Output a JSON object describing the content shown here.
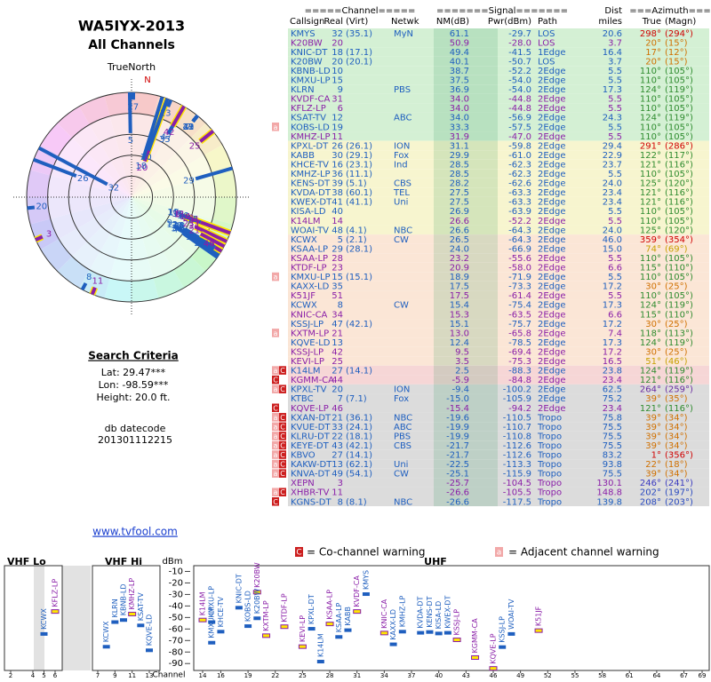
{
  "header": {
    "title": "WA5IYX-2013",
    "subtitle": "All Channels"
  },
  "radar": {
    "north_label": "TrueNorth",
    "n": "N"
  },
  "search": {
    "heading": "Search Criteria",
    "lat": "Lat: 29.47***",
    "lon": "Lon: -98.59***",
    "height": "Height: 20.0 ft.",
    "datecode_label": "db datecode",
    "datecode": "201301112215"
  },
  "link": "www.tvfool.com",
  "table": {
    "group_headers": {
      "channel": "=====Channel=====",
      "signal": "=======Signal=======",
      "dist": "Dist",
      "azimuth": "===Azimuth==="
    },
    "headers": {
      "callsign": "Callsign",
      "real": "Real",
      "virt": "(Virt)",
      "netwk": "Netwk",
      "nm": "NM(dB)",
      "pwr": "Pwr(dBm)",
      "path": "Path",
      "miles": "miles",
      "true": "True",
      "magn": "(Magn)"
    },
    "rows": [
      {
        "cs": "KMYS",
        "ch": 32,
        "virt": "(35.1)",
        "net": "MyN",
        "nm": 61.1,
        "pwr": -29.7,
        "path": "LOS",
        "dist": "20.6",
        "az": 298,
        "azl": "298°",
        "magn": "(294°)",
        "fg": "#1f5fbf",
        "bg": "#d4f0d4",
        "azc": "#d00000",
        "flags": []
      },
      {
        "cs": "K20BW",
        "ch": 20,
        "nm": 50.9,
        "pwr": -28.0,
        "pwrl": "-28.0",
        "path": "LOS",
        "dist": "3.7",
        "az": 20,
        "azl": "20°",
        "magn": "(15°)",
        "fg": "#8a1fa8",
        "bg": "#d4f0d4",
        "azc": "#d07000",
        "flags": []
      },
      {
        "cs": "KNIC-DT",
        "ch": 18,
        "virt": "(17.1)",
        "nm": 49.4,
        "pwr": -41.5,
        "path": "1Edge",
        "dist": "16.4",
        "az": 17,
        "azl": "17°",
        "magn": "(12°)",
        "fg": "#1f5fbf",
        "bg": "#d4f0d4",
        "azc": "#d07000",
        "flags": []
      },
      {
        "cs": "K20BW",
        "ch": 20,
        "virt": "(20.1)",
        "nm": 40.1,
        "pwr": -50.7,
        "path": "LOS",
        "dist": "3.7",
        "az": 20,
        "azl": "20°",
        "magn": "(15°)",
        "fg": "#1f5fbf",
        "bg": "#d4f0d4",
        "azc": "#d07000",
        "flags": []
      },
      {
        "cs": "KBNB-LD",
        "ch": 10,
        "nm": 38.7,
        "pwr": -52.2,
        "path": "2Edge",
        "dist": "5.5",
        "az": 110,
        "azl": "110°",
        "magn": "(105°)",
        "fg": "#1f5fbf",
        "bg": "#d4f0d4",
        "azc": "#2e8b2e",
        "flags": []
      },
      {
        "cs": "KMXU-LP",
        "ch": 15,
        "nm": 37.5,
        "pwr": -54.0,
        "pwrl": "-54.0",
        "path": "2Edge",
        "dist": "5.5",
        "az": 110,
        "azl": "110°",
        "magn": "(105°)",
        "fg": "#1f5fbf",
        "bg": "#d4f0d4",
        "azc": "#2e8b2e",
        "flags": []
      },
      {
        "cs": "KLRN",
        "ch": 9,
        "net": "PBS",
        "nm": 36.9,
        "pwr": -54.0,
        "pwrl": "-54.0",
        "path": "2Edge",
        "dist": "17.3",
        "az": 124,
        "azl": "124°",
        "magn": "(119°)",
        "fg": "#1f5fbf",
        "bg": "#d4f0d4",
        "azc": "#2e8b2e",
        "flags": []
      },
      {
        "cs": "KVDF-CA",
        "ch": 31,
        "nm": 34.0,
        "nml": "34.0",
        "pwr": -44.8,
        "path": "2Edge",
        "dist": "5.5",
        "az": 110,
        "azl": "110°",
        "magn": "(105°)",
        "fg": "#8a1fa8",
        "bg": "#d4f0d4",
        "azc": "#2e8b2e",
        "flags": []
      },
      {
        "cs": "KFLZ-LP",
        "ch": 6,
        "nm": 34.0,
        "nml": "34.0",
        "pwr": -44.8,
        "path": "2Edge",
        "dist": "5.5",
        "az": 110,
        "azl": "110°",
        "magn": "(105°)",
        "fg": "#8a1fa8",
        "bg": "#d4f0d4",
        "azc": "#2e8b2e",
        "flags": []
      },
      {
        "cs": "KSAT-TV",
        "ch": 12,
        "net": "ABC",
        "nm": 34.0,
        "nml": "34.0",
        "pwr": -56.9,
        "path": "2Edge",
        "dist": "24.3",
        "az": 124,
        "azl": "124°",
        "magn": "(119°)",
        "fg": "#1f5fbf",
        "bg": "#d4f0d4",
        "azc": "#2e8b2e",
        "flags": []
      },
      {
        "cs": "KOBS-LD",
        "ch": 19,
        "nm": 33.3,
        "pwr": -57.5,
        "path": "2Edge",
        "dist": "5.5",
        "az": 110,
        "azl": "110°",
        "magn": "(105°)",
        "fg": "#1f5fbf",
        "bg": "#d4f0d4",
        "azc": "#2e8b2e",
        "flags": [
          "a"
        ]
      },
      {
        "cs": "KMHZ-LP",
        "ch": 11,
        "nm": 31.9,
        "pwr": -47.0,
        "pwrl": "-47.0",
        "path": "2Edge",
        "dist": "5.5",
        "az": 110,
        "azl": "110°",
        "magn": "(105°)",
        "fg": "#8a1fa8",
        "bg": "#d4f0d4",
        "azc": "#2e8b2e",
        "flags": []
      },
      {
        "cs": "KPXL-DT",
        "ch": 26,
        "virt": "(26.1)",
        "net": "ION",
        "nm": 31.1,
        "pwr": -59.8,
        "path": "2Edge",
        "dist": "29.4",
        "az": 291,
        "azl": "291°",
        "magn": "(286°)",
        "fg": "#1f5fbf",
        "bg": "#f7f5cf",
        "azc": "#d00000",
        "flags": []
      },
      {
        "cs": "KABB",
        "ch": 30,
        "virt": "(29.1)",
        "net": "Fox",
        "nm": 29.9,
        "pwr": -61.0,
        "pwrl": "-61.0",
        "path": "2Edge",
        "dist": "22.9",
        "az": 122,
        "azl": "122°",
        "magn": "(117°)",
        "fg": "#1f5fbf",
        "bg": "#f7f5cf",
        "azc": "#2e8b2e",
        "flags": []
      },
      {
        "cs": "KHCE-TV",
        "ch": 16,
        "virt": "(23.1)",
        "net": "Ind",
        "nm": 28.5,
        "pwr": -62.3,
        "path": "2Edge",
        "dist": "23.7",
        "az": 121,
        "azl": "121°",
        "magn": "(116°)",
        "fg": "#1f5fbf",
        "bg": "#f7f5cf",
        "azc": "#2e8b2e",
        "flags": []
      },
      {
        "cs": "KMHZ-LP",
        "ch": 36,
        "virt": "(11.1)",
        "nm": 28.5,
        "pwr": -62.3,
        "path": "2Edge",
        "dist": "5.5",
        "az": 110,
        "azl": "110°",
        "magn": "(105°)",
        "fg": "#1f5fbf",
        "bg": "#f7f5cf",
        "azc": "#2e8b2e",
        "flags": []
      },
      {
        "cs": "KENS-DT",
        "ch": 39,
        "virt": "(5.1)",
        "net": "CBS",
        "nm": 28.2,
        "pwr": -62.6,
        "path": "2Edge",
        "dist": "24.0",
        "az": 125,
        "azl": "125°",
        "magn": "(120°)",
        "fg": "#1f5fbf",
        "bg": "#f7f5cf",
        "azc": "#2e8b2e",
        "flags": []
      },
      {
        "cs": "KVDA-DT",
        "ch": 38,
        "virt": "(60.1)",
        "net": "TEL",
        "nm": 27.5,
        "pwr": -63.3,
        "path": "2Edge",
        "dist": "23.4",
        "az": 121,
        "azl": "121°",
        "magn": "(116°)",
        "fg": "#1f5fbf",
        "bg": "#f7f5cf",
        "azc": "#2e8b2e",
        "flags": []
      },
      {
        "cs": "KWEX-DT",
        "ch": 41,
        "virt": "(41.1)",
        "net": "Uni",
        "nm": 27.5,
        "pwr": -63.3,
        "path": "2Edge",
        "dist": "23.4",
        "az": 121,
        "azl": "121°",
        "magn": "(116°)",
        "fg": "#1f5fbf",
        "bg": "#f7f5cf",
        "azc": "#2e8b2e",
        "flags": []
      },
      {
        "cs": "KISA-LD",
        "ch": 40,
        "nm": 26.9,
        "pwr": -63.9,
        "path": "2Edge",
        "dist": "5.5",
        "az": 110,
        "azl": "110°",
        "magn": "(105°)",
        "fg": "#1f5fbf",
        "bg": "#f7f5cf",
        "azc": "#2e8b2e",
        "flags": []
      },
      {
        "cs": "K14LM",
        "ch": 14,
        "nm": 26.6,
        "pwr": -52.2,
        "path": "2Edge",
        "dist": "5.5",
        "az": 110,
        "azl": "110°",
        "magn": "(105°)",
        "fg": "#8a1fa8",
        "bg": "#f7f5cf",
        "azc": "#2e8b2e",
        "flags": []
      },
      {
        "cs": "WOAI-TV",
        "ch": 48,
        "virt": "(4.1)",
        "net": "NBC",
        "nm": 26.6,
        "pwr": -64.3,
        "path": "2Edge",
        "dist": "24.0",
        "az": 125,
        "azl": "125°",
        "magn": "(120°)",
        "fg": "#1f5fbf",
        "bg": "#f7f5cf",
        "azc": "#2e8b2e",
        "flags": []
      },
      {
        "cs": "KCWX",
        "ch": 5,
        "virt": "(2.1)",
        "net": "CW",
        "nm": 26.5,
        "pwr": -64.3,
        "path": "2Edge",
        "dist": "46.0",
        "az": 359,
        "azl": "359°",
        "magn": "(354°)",
        "fg": "#1f5fbf",
        "bg": "#fbe6d6",
        "azc": "#d00000",
        "flags": []
      },
      {
        "cs": "KSAA-LP",
        "ch": 29,
        "virt": "(28.1)",
        "nm": 24.0,
        "nml": "24.0",
        "pwr": -66.9,
        "path": "2Edge",
        "dist": "15.0",
        "az": 74,
        "azl": "74°",
        "magn": "(69°)",
        "fg": "#1f5fbf",
        "bg": "#fbe6d6",
        "azc": "#c8a000",
        "flags": []
      },
      {
        "cs": "KSAA-LP",
        "ch": 28,
        "nm": 23.2,
        "pwr": -55.6,
        "path": "2Edge",
        "dist": "5.5",
        "az": 110,
        "azl": "110°",
        "magn": "(105°)",
        "fg": "#8a1fa8",
        "bg": "#fbe6d6",
        "azc": "#2e8b2e",
        "flags": []
      },
      {
        "cs": "KTDF-LP",
        "ch": 23,
        "nm": 20.9,
        "pwr": -58.0,
        "pwrl": "-58.0",
        "path": "2Edge",
        "dist": "6.6",
        "az": 115,
        "azl": "115°",
        "magn": "(110°)",
        "fg": "#8a1fa8",
        "bg": "#fbe6d6",
        "azc": "#2e8b2e",
        "flags": []
      },
      {
        "cs": "KMXU-LP",
        "ch": 15,
        "virt": "(15.1)",
        "nm": 18.9,
        "pwr": -71.9,
        "path": "2Edge",
        "dist": "5.5",
        "az": 110,
        "azl": "110°",
        "magn": "(105°)",
        "fg": "#1f5fbf",
        "bg": "#fbe6d6",
        "azc": "#2e8b2e",
        "flags": [
          "a"
        ]
      },
      {
        "cs": "KAXX-LD",
        "ch": 35,
        "nm": 17.5,
        "pwr": -73.3,
        "path": "2Edge",
        "dist": "17.2",
        "az": 30,
        "azl": "30°",
        "magn": "(25°)",
        "fg": "#1f5fbf",
        "bg": "#fbe6d6",
        "azc": "#d07000",
        "flags": []
      },
      {
        "cs": "K51JF",
        "ch": 51,
        "nm": 17.5,
        "pwr": -61.4,
        "path": "2Edge",
        "dist": "5.5",
        "az": 110,
        "azl": "110°",
        "magn": "(105°)",
        "fg": "#8a1fa8",
        "bg": "#fbe6d6",
        "azc": "#2e8b2e",
        "flags": []
      },
      {
        "cs": "KCWX",
        "ch": 8,
        "net": "CW",
        "nm": 15.4,
        "pwr": -75.4,
        "path": "2Edge",
        "dist": "17.3",
        "az": 124,
        "azl": "124°",
        "magn": "(119°)",
        "fg": "#1f5fbf",
        "bg": "#fbe6d6",
        "azc": "#2e8b2e",
        "flags": []
      },
      {
        "cs": "KNIC-CA",
        "ch": 34,
        "nm": 15.3,
        "pwr": -63.5,
        "path": "2Edge",
        "dist": "6.6",
        "az": 115,
        "azl": "115°",
        "magn": "(110°)",
        "fg": "#8a1fa8",
        "bg": "#fbe6d6",
        "azc": "#2e8b2e",
        "flags": []
      },
      {
        "cs": "KSSJ-LP",
        "ch": 47,
        "virt": "(42.1)",
        "nm": 15.1,
        "pwr": -75.7,
        "path": "2Edge",
        "dist": "17.2",
        "az": 30,
        "azl": "30°",
        "magn": "(25°)",
        "fg": "#1f5fbf",
        "bg": "#fbe6d6",
        "azc": "#d07000",
        "flags": []
      },
      {
        "cs": "KXTM-LP",
        "ch": 21,
        "nm": 13.0,
        "nml": "13.0",
        "pwr": -65.8,
        "path": "2Edge",
        "dist": "7.4",
        "az": 118,
        "azl": "118°",
        "magn": "(113°)",
        "fg": "#8a1fa8",
        "bg": "#fbe6d6",
        "azc": "#2e8b2e",
        "flags": [
          "a"
        ]
      },
      {
        "cs": "KQVE-LD",
        "ch": 13,
        "nm": 12.4,
        "pwr": -78.5,
        "path": "2Edge",
        "dist": "17.3",
        "az": 124,
        "azl": "124°",
        "magn": "(119°)",
        "fg": "#1f5fbf",
        "bg": "#fbe6d6",
        "azc": "#2e8b2e",
        "flags": []
      },
      {
        "cs": "KSSJ-LP",
        "ch": 42,
        "nm": 9.5,
        "pwr": -69.4,
        "path": "2Edge",
        "dist": "17.2",
        "az": 30,
        "azl": "30°",
        "magn": "(25°)",
        "fg": "#8a1fa8",
        "bg": "#fbe6d6",
        "azc": "#d07000",
        "flags": []
      },
      {
        "cs": "KEVI-LP",
        "ch": 25,
        "nm": 3.5,
        "pwr": -75.3,
        "path": "2Edge",
        "dist": "16.5",
        "az": 51,
        "azl": "51°",
        "magn": "(46°)",
        "fg": "#8a1fa8",
        "bg": "#fbe6d6",
        "azc": "#c8a000",
        "flags": []
      },
      {
        "cs": "K14LM",
        "ch": 27,
        "virt": "(14.1)",
        "nm": 2.5,
        "pwr": -88.3,
        "path": "2Edge",
        "dist": "23.8",
        "az": 124,
        "azl": "124°",
        "magn": "(119°)",
        "fg": "#1f5fbf",
        "bg": "#f6d6d6",
        "azc": "#2e8b2e",
        "flags": [
          "a",
          "C"
        ]
      },
      {
        "cs": "KGMM-CA",
        "ch": 44,
        "nm": -5.9,
        "pwr": -84.8,
        "path": "2Edge",
        "dist": "23.4",
        "az": 121,
        "azl": "121°",
        "magn": "(116°)",
        "fg": "#8a1fa8",
        "bg": "#f6d6d6",
        "azc": "#2e8b2e",
        "flags": [
          "C"
        ]
      },
      {
        "cs": "KPXL-TV",
        "ch": 20,
        "net": "ION",
        "nm": -9.4,
        "pwr": -100.2,
        "path": "2Edge",
        "dist": "62.5",
        "az": 264,
        "azl": "264°",
        "magn": "(259°)",
        "fg": "#1f5fbf",
        "bg": "#dcdcdc",
        "azc": "#6a2ca0",
        "flags": [
          "a",
          "C"
        ]
      },
      {
        "cs": "KTBC",
        "ch": 7,
        "virt": "(7.1)",
        "net": "Fox",
        "nm": -15.0,
        "nml": "-15.0",
        "pwr": -105.9,
        "path": "2Edge",
        "dist": "75.2",
        "az": 39,
        "azl": "39°",
        "magn": "(35°)",
        "fg": "#1f5fbf",
        "bg": "#dcdcdc",
        "azc": "#d07000",
        "flags": []
      },
      {
        "cs": "KQVE-LP",
        "ch": 46,
        "nm": -15.4,
        "pwr": -94.2,
        "path": "2Edge",
        "dist": "23.4",
        "az": 121,
        "azl": "121°",
        "magn": "(116°)",
        "fg": "#8a1fa8",
        "bg": "#dcdcdc",
        "azc": "#2e8b2e",
        "flags": [
          "C"
        ]
      },
      {
        "cs": "KXAN-DT",
        "ch": 21,
        "virt": "(36.1)",
        "net": "NBC",
        "nm": -19.6,
        "pwr": -110.5,
        "path": "Tropo",
        "dist": "75.8",
        "az": 39,
        "azl": "39°",
        "magn": "(34°)",
        "fg": "#1f5fbf",
        "bg": "#dcdcdc",
        "azc": "#d07000",
        "flags": [
          "a",
          "C"
        ]
      },
      {
        "cs": "KVUE-DT",
        "ch": 33,
        "virt": "(24.1)",
        "net": "ABC",
        "nm": -19.9,
        "pwr": -110.7,
        "path": "Tropo",
        "dist": "75.5",
        "az": 39,
        "azl": "39°",
        "magn": "(34°)",
        "fg": "#1f5fbf",
        "bg": "#dcdcdc",
        "azc": "#d07000",
        "flags": [
          "a",
          "C"
        ]
      },
      {
        "cs": "KLRU-DT",
        "ch": 22,
        "virt": "(18.1)",
        "net": "PBS",
        "nm": -19.9,
        "pwr": -110.8,
        "path": "Tropo",
        "dist": "75.5",
        "az": 39,
        "azl": "39°",
        "magn": "(34°)",
        "fg": "#1f5fbf",
        "bg": "#dcdcdc",
        "azc": "#d07000",
        "flags": [
          "a",
          "C"
        ]
      },
      {
        "cs": "KEYE-DT",
        "ch": 43,
        "virt": "(42.1)",
        "net": "CBS",
        "nm": -21.7,
        "pwr": -112.6,
        "path": "Tropo",
        "dist": "75.5",
        "az": 39,
        "azl": "39°",
        "magn": "(34°)",
        "fg": "#1f5fbf",
        "bg": "#dcdcdc",
        "azc": "#d07000",
        "flags": [
          "a",
          "C"
        ]
      },
      {
        "cs": "KBVO",
        "ch": 27,
        "virt": "(14.1)",
        "nm": -21.7,
        "pwr": -112.6,
        "path": "Tropo",
        "dist": "83.2",
        "az": 1,
        "azl": "1°",
        "magn": "(356°)",
        "fg": "#1f5fbf",
        "bg": "#dcdcdc",
        "azc": "#d00000",
        "flags": [
          "a",
          "C"
        ]
      },
      {
        "cs": "KAKW-DT",
        "ch": 13,
        "virt": "(62.1)",
        "net": "Uni",
        "nm": -22.5,
        "pwr": -113.3,
        "path": "Tropo",
        "dist": "93.8",
        "az": 22,
        "azl": "22°",
        "magn": "(18°)",
        "fg": "#1f5fbf",
        "bg": "#dcdcdc",
        "azc": "#d07000",
        "flags": [
          "a",
          "C"
        ]
      },
      {
        "cs": "KNVA-DT",
        "ch": 49,
        "virt": "(54.1)",
        "net": "CW",
        "nm": -25.1,
        "pwr": -115.9,
        "path": "Tropo",
        "dist": "75.5",
        "az": 39,
        "azl": "39°",
        "magn": "(34°)",
        "fg": "#1f5fbf",
        "bg": "#dcdcdc",
        "azc": "#d07000",
        "flags": [
          "a",
          "C"
        ]
      },
      {
        "cs": "XEPN",
        "ch": 3,
        "nm": -25.7,
        "pwr": -104.5,
        "path": "Tropo",
        "dist": "130.1",
        "az": 246,
        "azl": "246°",
        "magn": "(241°)",
        "fg": "#8a1fa8",
        "bg": "#dcdcdc",
        "azc": "#3a3ac0",
        "flags": []
      },
      {
        "cs": "XHBR-TV",
        "ch": 11,
        "nm": -26.6,
        "pwr": -105.5,
        "path": "Tropo",
        "dist": "148.8",
        "az": 202,
        "azl": "202°",
        "magn": "(197°)",
        "fg": "#8a1fa8",
        "bg": "#dcdcdc",
        "azc": "#2a4ac0",
        "flags": [
          "a",
          "C"
        ]
      },
      {
        "cs": "KGNS-DT",
        "ch": 8,
        "virt": "(8.1)",
        "net": "NBC",
        "nm": -26.6,
        "pwr": -117.5,
        "path": "Tropo",
        "dist": "139.8",
        "az": 208,
        "azl": "208°",
        "magn": "(203°)",
        "fg": "#1f5fbf",
        "bg": "#dcdcdc",
        "azc": "#2a4ac0",
        "flags": [
          "C"
        ]
      }
    ]
  },
  "legend": {
    "co_icon": "C",
    "co_text": "= Co-channel warning",
    "adj_icon": "a",
    "adj_text": "= Adjacent channel warning"
  },
  "chart_data": {
    "type": "spectrum",
    "ylabel": "dBm",
    "xlabel": "Channel",
    "ylim": [
      -96,
      -5
    ],
    "yticks": [
      -10,
      -20,
      -30,
      -40,
      -50,
      -60,
      -70,
      -80,
      -90
    ],
    "bands": [
      {
        "name": "VHF Lo",
        "xlim": [
          2,
          6
        ],
        "xticks": [
          2,
          4,
          5,
          6
        ]
      },
      {
        "name": "VHF Hi",
        "xlim": [
          7,
          13
        ],
        "xticks": [
          7,
          9,
          11,
          13
        ]
      },
      {
        "name": "UHF",
        "xlim": [
          14,
          69
        ],
        "xticks": [
          14,
          16,
          19,
          22,
          25,
          28,
          31,
          34,
          37,
          40,
          43,
          46,
          49,
          52,
          55,
          58,
          61,
          64,
          67,
          69
        ]
      }
    ]
  }
}
